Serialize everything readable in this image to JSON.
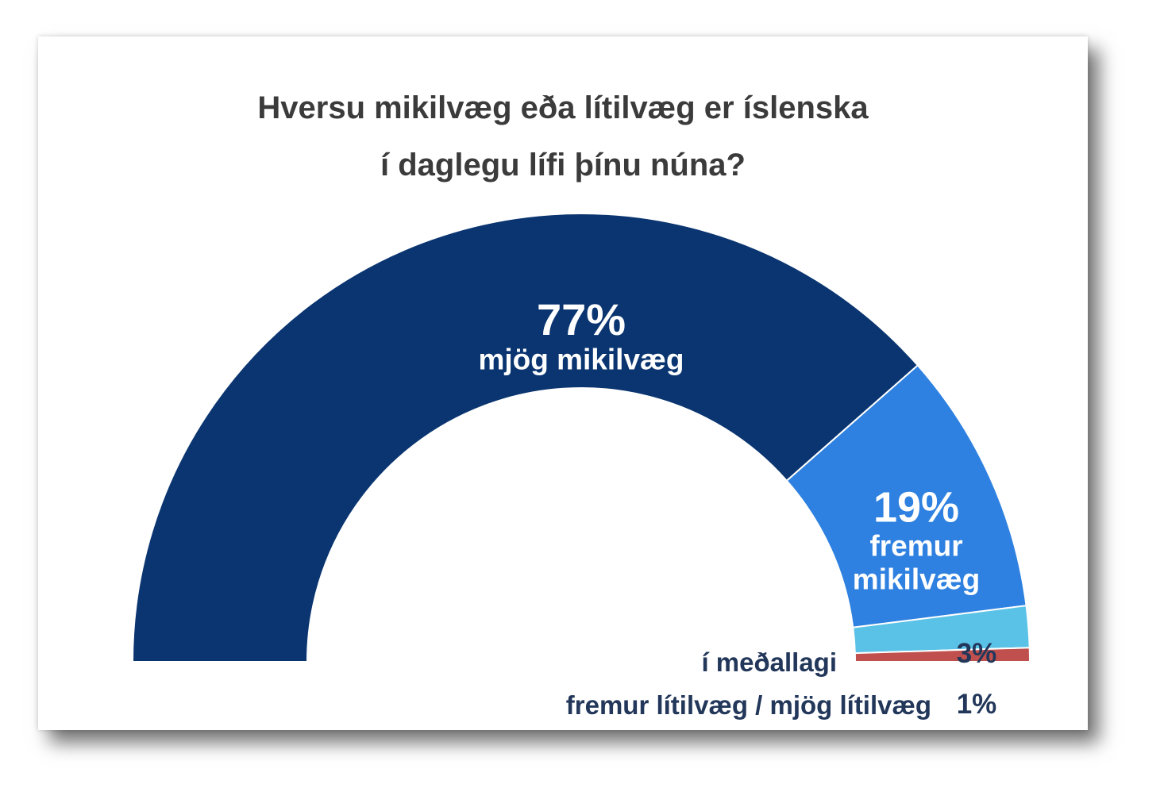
{
  "chart_data": {
    "type": "pie",
    "variant": "semicircle-donut",
    "title_lines": [
      "Hversu mikilvæg eða lítilvæg er íslenska",
      "í daglegu lífi þínu núna?"
    ],
    "slices": [
      {
        "value": 77,
        "value_label": "77%",
        "label_lines": [
          "mjög mikilvæg"
        ],
        "color": "#0a3570",
        "label_color": "#ffffff"
      },
      {
        "value": 19,
        "value_label": "19%",
        "label_lines": [
          "fremur",
          "mikilvæg"
        ],
        "color": "#2e81e0",
        "label_color": "#ffffff"
      },
      {
        "value": 3,
        "value_label": "3%",
        "label_lines": [
          "í meðallagi"
        ],
        "color": "#5bc2e7",
        "label_color": "#22375a"
      },
      {
        "value": 1,
        "value_label": "1%",
        "label_lines": [
          "fremur lítilvæg / mjög lítilvæg"
        ],
        "color": "#c0504d",
        "label_color": "#22375a"
      }
    ]
  }
}
